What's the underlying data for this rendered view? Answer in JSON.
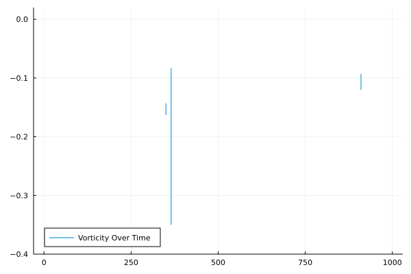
{
  "chart_data": {
    "type": "line",
    "title": "",
    "xlabel": "",
    "ylabel": "",
    "xlim": [
      -30,
      1030
    ],
    "ylim": [
      -0.4,
      0.02
    ],
    "x_ticks": [
      0,
      250,
      500,
      750,
      1000
    ],
    "x_tick_labels": [
      "0",
      "250",
      "500",
      "750",
      "1000"
    ],
    "y_ticks": [
      0.0,
      -0.1,
      -0.2,
      -0.3,
      -0.4
    ],
    "y_tick_labels": [
      "0.0",
      "−0.1",
      "−0.2",
      "−0.3",
      "−0.4"
    ],
    "grid": true,
    "legend_position": "bottom-left",
    "series": [
      {
        "name": "Vorticity Over Time",
        "color": "#1f9bd6",
        "segments": [
          [
            [
              350,
              -0.143
            ],
            [
              350,
              -0.163
            ]
          ],
          [
            [
              365,
              -0.083
            ],
            [
              365,
              -0.35
            ]
          ],
          [
            [
              910,
              -0.093
            ],
            [
              910,
              -0.12
            ]
          ]
        ]
      }
    ]
  }
}
